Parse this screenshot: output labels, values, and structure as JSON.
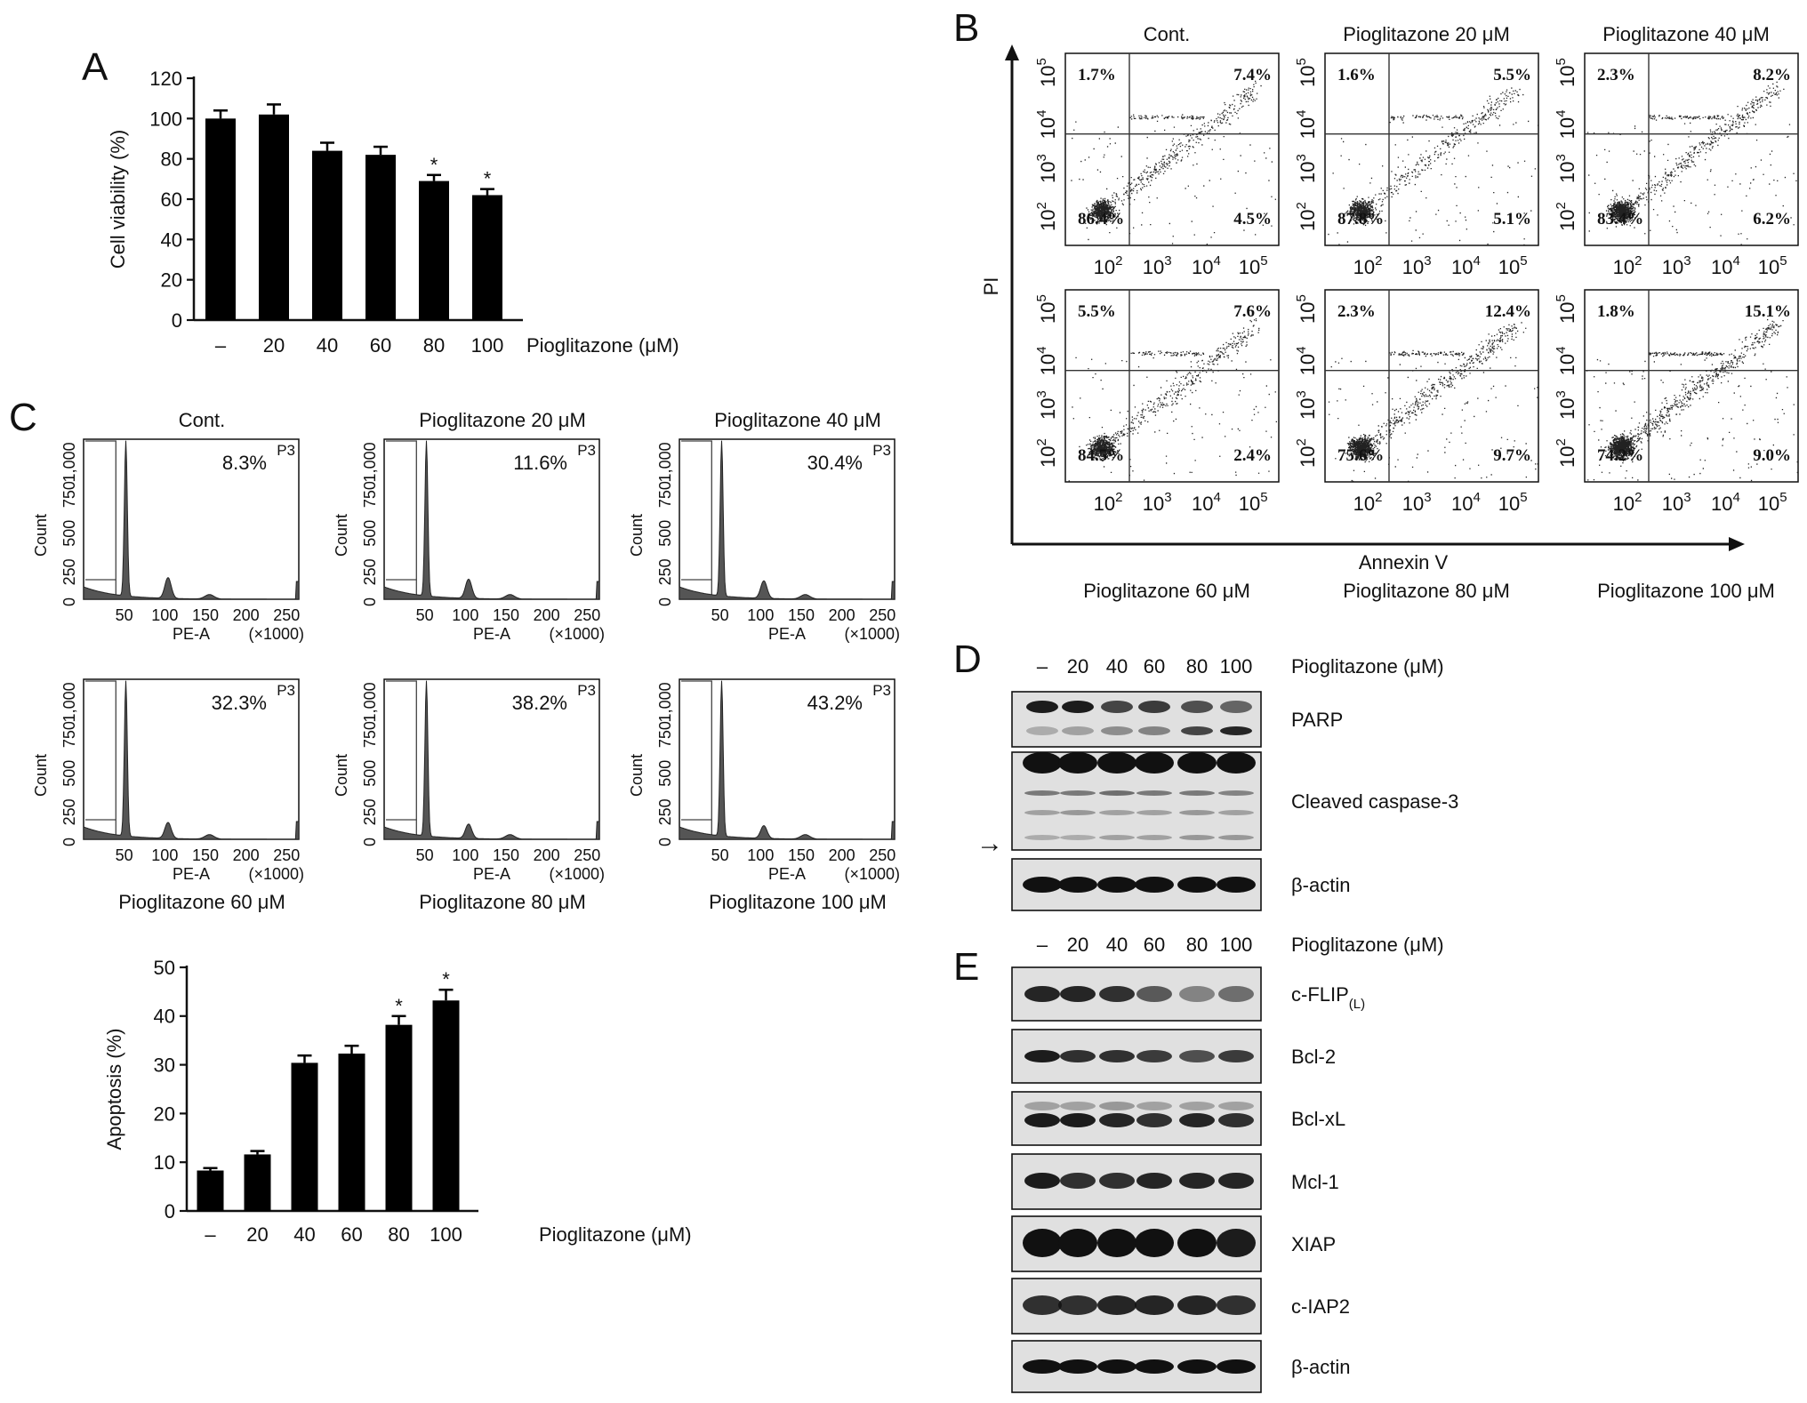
{
  "panel_letters": [
    "A",
    "B",
    "C",
    "D",
    "E"
  ],
  "chart_data": [
    {
      "panel": "A",
      "type": "bar",
      "categories": [
        "–",
        "20",
        "40",
        "60",
        "80",
        "100"
      ],
      "values": [
        100,
        102,
        84,
        82,
        69,
        62
      ],
      "errors": [
        4,
        5,
        4,
        4,
        3,
        3
      ],
      "significant": [
        false,
        false,
        false,
        false,
        true,
        true
      ],
      "significance_mark": "*",
      "ylabel": "Cell viability (%)",
      "xlabel": "Pioglitazone (μM)",
      "ylim": [
        0,
        120
      ],
      "yticks": [
        0,
        20,
        40,
        60,
        80,
        100,
        120
      ]
    },
    {
      "panel": "C",
      "type": "bar",
      "categories": [
        "–",
        "20",
        "40",
        "60",
        "80",
        "100"
      ],
      "values": [
        8.3,
        11.6,
        30.4,
        32.3,
        38.2,
        43.2
      ],
      "errors": [
        0.5,
        0.7,
        1.5,
        1.6,
        1.8,
        2.2
      ],
      "significant": [
        false,
        false,
        false,
        false,
        true,
        true
      ],
      "significance_mark": "*",
      "ylabel": "Apoptosis (%)",
      "xlabel": "Pioglitazone (μM)",
      "ylim": [
        0,
        50
      ],
      "yticks": [
        0,
        10,
        20,
        30,
        40,
        50
      ]
    }
  ],
  "panelB": {
    "ylabel": "PI",
    "xlabel": "Annexin V",
    "tick_base": "10",
    "tick_exps": [
      "2",
      "3",
      "4",
      "5"
    ],
    "plots": [
      {
        "title": "Cont.",
        "title_pos": "top",
        "q": [
          "1.7%",
          "7.4%",
          "86.4%",
          "4.5%"
        ],
        "density": 0.5
      },
      {
        "title": "Pioglitazone 20 μM",
        "title_pos": "top",
        "q": [
          "1.6%",
          "5.5%",
          "87.8%",
          "5.1%"
        ],
        "density": 0.45
      },
      {
        "title": "Pioglitazone 40 μM",
        "title_pos": "top",
        "q": [
          "2.3%",
          "8.2%",
          "83.4%",
          "6.2%"
        ],
        "density": 0.55
      },
      {
        "title": "Pioglitazone 60 μM",
        "title_pos": "bottom",
        "q": [
          "5.5%",
          "7.6%",
          "84.5%",
          "2.4%"
        ],
        "density": 0.5
      },
      {
        "title": "Pioglitazone 80 μM",
        "title_pos": "bottom",
        "q": [
          "2.3%",
          "12.4%",
          "75.6%",
          "9.7%"
        ],
        "density": 0.6
      },
      {
        "title": "Pioglitazone 100 μM",
        "title_pos": "bottom",
        "q": [
          "1.8%",
          "15.1%",
          "74.2%",
          "9.0%"
        ],
        "density": 0.7
      }
    ]
  },
  "panelC_histograms": {
    "ylabel": "Count",
    "xlabel": "PE-A",
    "xunit": "(×1000)",
    "gate": "P3",
    "yticks": [
      "0",
      "250",
      "500",
      "750",
      "1,000"
    ],
    "xticks": [
      "50",
      "100",
      "150",
      "200",
      "250"
    ],
    "plots": [
      {
        "title": "Cont.",
        "title_pos": "top",
        "pct": "8.3%"
      },
      {
        "title": "Pioglitazone 20 μM",
        "title_pos": "top",
        "pct": "11.6%"
      },
      {
        "title": "Pioglitazone 40 μM",
        "title_pos": "top",
        "pct": "30.4%"
      },
      {
        "title": "Pioglitazone 60 μM",
        "title_pos": "bottom",
        "pct": "32.3%"
      },
      {
        "title": "Pioglitazone 80 μM",
        "title_pos": "bottom",
        "pct": "38.2%"
      },
      {
        "title": "Pioglitazone 100 μM",
        "title_pos": "bottom",
        "pct": "43.2%"
      }
    ]
  },
  "panelD": {
    "lanes": [
      "–",
      "20",
      "40",
      "60",
      "80",
      "100"
    ],
    "treatment": "Pioglitazone (μM)",
    "bands": [
      "PARP",
      "Cleaved caspase-3",
      "β-actin"
    ],
    "arrow": "→"
  },
  "panelE": {
    "lanes": [
      "–",
      "20",
      "40",
      "60",
      "80",
      "100"
    ],
    "treatment": "Pioglitazone (μM)",
    "bands": [
      "c-FLIP",
      "Bcl-2",
      "Bcl-xL",
      "Mcl-1",
      "XIAP",
      "c-IAP2",
      "β-actin"
    ],
    "flip_sub": "(L)"
  }
}
